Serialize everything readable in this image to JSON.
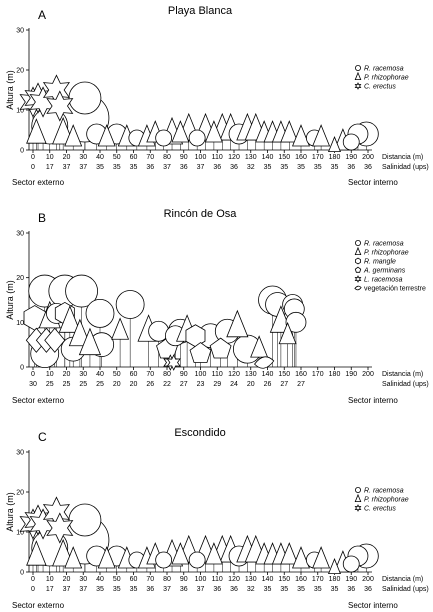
{
  "chart_data": [
    {
      "type": "scatter",
      "panel_letter": "A",
      "title": "Playa Blanca",
      "ylabel": "Altura (m)",
      "xlabel": "Distancia (m)",
      "salinity_label": "Salinidad (ups)",
      "ylim": [
        0,
        30
      ],
      "yticks": [
        0,
        10,
        20,
        30
      ],
      "xticks": [
        "0",
        "10",
        "20",
        "30",
        "40",
        "50",
        "60",
        "70",
        "80",
        "90",
        "100",
        "110",
        "120",
        "130",
        "140",
        "150",
        "160",
        "170",
        "180",
        "190",
        "200"
      ],
      "salinity": [
        "0",
        "17",
        "37",
        "37",
        "35",
        "35",
        "35",
        "36",
        "37",
        "36",
        "37",
        "36",
        "36",
        "32",
        "35",
        "35",
        "35",
        "35",
        "35",
        "36",
        "36"
      ],
      "sector_left": "Sector externo",
      "sector_right": "Sector interno",
      "legend": [
        {
          "symbol": "circle",
          "label": "R. racemosa"
        },
        {
          "symbol": "triangle",
          "label": "P. rhizophorae"
        },
        {
          "symbol": "star",
          "label": "C. erectus"
        }
      ],
      "points": [
        {
          "s": "star",
          "x": 0,
          "y": 12,
          "r": 3.2
        },
        {
          "s": "star",
          "x": 3,
          "y": 13,
          "r": 3.2
        },
        {
          "s": "star",
          "x": 6,
          "y": 12,
          "r": 3.2
        },
        {
          "s": "star",
          "x": 14,
          "y": 15,
          "r": 3.2
        },
        {
          "s": "star",
          "x": 16,
          "y": 11,
          "r": 3.2
        },
        {
          "s": "triangle",
          "x": 2,
          "y": 4,
          "r": 2.3
        },
        {
          "s": "circle",
          "x": 10,
          "y": 6,
          "r": 4.5
        },
        {
          "s": "triangle",
          "x": 18,
          "y": 4,
          "r": 2.5
        },
        {
          "s": "triangle",
          "x": 24,
          "y": 3,
          "r": 2.0
        },
        {
          "s": "circle",
          "x": 31,
          "y": 8,
          "r": 6.0
        },
        {
          "s": "circle",
          "x": 31,
          "y": 13,
          "r": 4.0
        },
        {
          "s": "circle",
          "x": 38,
          "y": 4,
          "r": 2.5
        },
        {
          "s": "triangle",
          "x": 44,
          "y": 3,
          "r": 2.0
        },
        {
          "s": "circle",
          "x": 50,
          "y": 4,
          "r": 2.5
        },
        {
          "s": "triangle",
          "x": 56,
          "y": 3,
          "r": 2.0
        },
        {
          "s": "circle",
          "x": 62,
          "y": 3,
          "r": 2.0
        },
        {
          "s": "triangle",
          "x": 68,
          "y": 3,
          "r": 2.0
        },
        {
          "s": "triangle",
          "x": 73,
          "y": 4,
          "r": 2.0
        },
        {
          "s": "circle",
          "x": 78,
          "y": 3,
          "r": 2.0
        },
        {
          "s": "triangle",
          "x": 83,
          "y": 4,
          "r": 2.5
        },
        {
          "s": "triangle",
          "x": 88,
          "y": 4,
          "r": 2.0
        },
        {
          "s": "triangle",
          "x": 93,
          "y": 5,
          "r": 2.5
        },
        {
          "s": "circle",
          "x": 98,
          "y": 3,
          "r": 2.0
        },
        {
          "s": "triangle",
          "x": 103,
          "y": 5,
          "r": 2.5
        },
        {
          "s": "triangle",
          "x": 108,
          "y": 4,
          "r": 2.0
        },
        {
          "s": "triangle",
          "x": 113,
          "y": 5,
          "r": 2.5
        },
        {
          "s": "triangle",
          "x": 118,
          "y": 5,
          "r": 2.5
        },
        {
          "s": "circle",
          "x": 123,
          "y": 4,
          "r": 2.5
        },
        {
          "s": "triangle",
          "x": 128,
          "y": 5,
          "r": 2.5
        },
        {
          "s": "triangle",
          "x": 133,
          "y": 5,
          "r": 2.5
        },
        {
          "s": "triangle",
          "x": 138,
          "y": 4,
          "r": 2.0
        },
        {
          "s": "triangle",
          "x": 143,
          "y": 4,
          "r": 2.0
        },
        {
          "s": "triangle",
          "x": 148,
          "y": 4,
          "r": 2.0
        },
        {
          "s": "triangle",
          "x": 153,
          "y": 4,
          "r": 2.0
        },
        {
          "s": "triangle",
          "x": 160,
          "y": 3,
          "r": 2.0
        },
        {
          "s": "circle",
          "x": 168,
          "y": 3,
          "r": 2.0
        },
        {
          "s": "triangle",
          "x": 172,
          "y": 3,
          "r": 2.0
        },
        {
          "s": "triangle",
          "x": 180,
          "y": 1,
          "r": 1.4
        },
        {
          "s": "triangle",
          "x": 185,
          "y": 2,
          "r": 2.0
        },
        {
          "s": "circle",
          "x": 190,
          "y": 2,
          "r": 2.0
        },
        {
          "s": "circle",
          "x": 194,
          "y": 4,
          "r": 2.5
        },
        {
          "s": "circle",
          "x": 199,
          "y": 4,
          "r": 3.0
        }
      ]
    },
    {
      "type": "scatter",
      "panel_letter": "B",
      "title": "Rincón de Osa",
      "ylabel": "Altura (m)",
      "xlabel": "Distancia (m)",
      "salinity_label": "Salinidad (ups)",
      "ylim": [
        0,
        30
      ],
      "yticks": [
        0,
        10,
        20,
        30
      ],
      "xticks": [
        "0",
        "10",
        "20",
        "30",
        "40",
        "50",
        "60",
        "70",
        "80",
        "90",
        "100",
        "110",
        "120",
        "130",
        "140",
        "150",
        "160",
        "170",
        "180",
        "190",
        "200"
      ],
      "salinity": [
        "30",
        "25",
        "25",
        "25",
        "25",
        "20",
        "20",
        "26",
        "22",
        "27",
        "23",
        "29",
        "24",
        "20",
        "26",
        "27",
        "27",
        "",
        "",
        "",
        ""
      ],
      "sector_left": "Sector externo",
      "sector_right": "Sector interno",
      "legend": [
        {
          "symbol": "circle",
          "label": "R. racemosa"
        },
        {
          "symbol": "triangle",
          "label": "P. rhizophorae"
        },
        {
          "symbol": "hexagon",
          "label": "R. mangle"
        },
        {
          "symbol": "pentagon",
          "label": "A. germinans"
        },
        {
          "symbol": "star",
          "label": "L. racemosa"
        },
        {
          "symbol": "leaf",
          "label": "vegetación terrestre"
        }
      ],
      "points": [
        {
          "s": "hexagon",
          "x": 1,
          "y": 11,
          "r": 2.8
        },
        {
          "s": "diamond",
          "x": 2,
          "y": 6,
          "r": 2.5
        },
        {
          "s": "circle",
          "x": 7,
          "y": 17,
          "r": 4.0
        },
        {
          "s": "circle",
          "x": 7,
          "y": 3,
          "r": 3.5
        },
        {
          "s": "diamond",
          "x": 8,
          "y": 6,
          "r": 2.5
        },
        {
          "s": "triangle",
          "x": 10,
          "y": 11,
          "r": 2.5
        },
        {
          "s": "circle",
          "x": 14,
          "y": 12,
          "r": 2.5
        },
        {
          "s": "diamond",
          "x": 13,
          "y": 6,
          "r": 2.5
        },
        {
          "s": "circle",
          "x": 19,
          "y": 17,
          "r": 4.0
        },
        {
          "s": "hexagon",
          "x": 19,
          "y": 12,
          "r": 2.5
        },
        {
          "s": "triangle",
          "x": 22,
          "y": 10,
          "r": 2.5
        },
        {
          "s": "circle",
          "x": 24,
          "y": 4,
          "r": 3.0
        },
        {
          "s": "circle",
          "x": 29,
          "y": 17,
          "r": 4.0
        },
        {
          "s": "triangle",
          "x": 28,
          "y": 7,
          "r": 2.5
        },
        {
          "s": "triangle",
          "x": 34,
          "y": 5,
          "r": 2.5
        },
        {
          "s": "circle",
          "x": 40,
          "y": 12,
          "r": 3.5
        },
        {
          "s": "circle",
          "x": 41,
          "y": 5,
          "r": 3.0
        },
        {
          "s": "triangle",
          "x": 52,
          "y": 8,
          "r": 2.0
        },
        {
          "s": "circle",
          "x": 58,
          "y": 14,
          "r": 3.5
        },
        {
          "s": "triangle",
          "x": 69,
          "y": 8,
          "r": 2.5
        },
        {
          "s": "circle",
          "x": 75,
          "y": 8,
          "r": 2.5
        },
        {
          "s": "pentagon",
          "x": 80,
          "y": 4,
          "r": 2.5
        },
        {
          "s": "star",
          "x": 82,
          "y": 1,
          "r": 1.6
        },
        {
          "s": "star",
          "x": 84,
          "y": 1,
          "r": 1.6
        },
        {
          "s": "circle",
          "x": 85,
          "y": 7,
          "r": 2.5
        },
        {
          "s": "circle",
          "x": 88,
          "y": 8,
          "r": 3.0
        },
        {
          "s": "triangle",
          "x": 92,
          "y": 8,
          "r": 2.5
        },
        {
          "s": "hexagon",
          "x": 97,
          "y": 7,
          "r": 2.5
        },
        {
          "s": "pentagon",
          "x": 100,
          "y": 3,
          "r": 2.5
        },
        {
          "s": "circle",
          "x": 106,
          "y": 7,
          "r": 3.0
        },
        {
          "s": "pentagon",
          "x": 112,
          "y": 4,
          "r": 2.5
        },
        {
          "s": "circle",
          "x": 116,
          "y": 8,
          "r": 3.0
        },
        {
          "s": "triangle",
          "x": 122,
          "y": 9,
          "r": 2.5
        },
        {
          "s": "circle",
          "x": 128,
          "y": 4,
          "r": 3.5
        },
        {
          "s": "triangle",
          "x": 135,
          "y": 4,
          "r": 2.0
        },
        {
          "s": "leaf",
          "x": 138,
          "y": 1,
          "r": 2.0
        },
        {
          "s": "circle",
          "x": 143,
          "y": 15,
          "r": 3.5
        },
        {
          "s": "circle",
          "x": 146,
          "y": 14,
          "r": 3.0
        },
        {
          "s": "triangle",
          "x": 148,
          "y": 10,
          "r": 2.5
        },
        {
          "s": "circle",
          "x": 155,
          "y": 14,
          "r": 2.5
        },
        {
          "s": "circle",
          "x": 156,
          "y": 13,
          "r": 2.5
        },
        {
          "s": "circle",
          "x": 157,
          "y": 10,
          "r": 2.5
        },
        {
          "s": "triangle",
          "x": 152,
          "y": 7,
          "r": 2.0
        }
      ]
    },
    {
      "type": "scatter",
      "panel_letter": "C",
      "title": "Escondido",
      "ylabel": "Altura (m)",
      "xlabel": "Distancia (m)",
      "salinity_label": "Salinidad (ups)",
      "ylim": [
        0,
        30
      ],
      "yticks": [
        0,
        10,
        20,
        30
      ],
      "xticks": [
        "0",
        "10",
        "20",
        "30",
        "40",
        "50",
        "60",
        "70",
        "80",
        "90",
        "100",
        "110",
        "120",
        "130",
        "140",
        "150",
        "160",
        "170",
        "180",
        "190",
        "200"
      ],
      "salinity": [
        "0",
        "17",
        "37",
        "37",
        "35",
        "35",
        "35",
        "36",
        "37",
        "36",
        "37",
        "36",
        "36",
        "32",
        "35",
        "35",
        "35",
        "35",
        "35",
        "36",
        "36"
      ],
      "sector_left": "Sector externo",
      "sector_right": "Sector interno",
      "legend": [
        {
          "symbol": "circle",
          "label": "R. racemosa"
        },
        {
          "symbol": "triangle",
          "label": "P. rhizophorae"
        },
        {
          "symbol": "star",
          "label": "C. erectus"
        }
      ],
      "points": [
        {
          "s": "star",
          "x": 0,
          "y": 12,
          "r": 3.2
        },
        {
          "s": "star",
          "x": 3,
          "y": 13,
          "r": 3.2
        },
        {
          "s": "star",
          "x": 6,
          "y": 12,
          "r": 3.2
        },
        {
          "s": "star",
          "x": 14,
          "y": 15,
          "r": 3.2
        },
        {
          "s": "star",
          "x": 16,
          "y": 11,
          "r": 3.2
        },
        {
          "s": "triangle",
          "x": 2,
          "y": 4,
          "r": 2.3
        },
        {
          "s": "circle",
          "x": 10,
          "y": 6,
          "r": 4.5
        },
        {
          "s": "triangle",
          "x": 18,
          "y": 4,
          "r": 2.5
        },
        {
          "s": "triangle",
          "x": 24,
          "y": 3,
          "r": 2.0
        },
        {
          "s": "circle",
          "x": 31,
          "y": 8,
          "r": 6.0
        },
        {
          "s": "circle",
          "x": 31,
          "y": 13,
          "r": 4.0
        },
        {
          "s": "circle",
          "x": 38,
          "y": 4,
          "r": 2.5
        },
        {
          "s": "triangle",
          "x": 44,
          "y": 3,
          "r": 2.0
        },
        {
          "s": "circle",
          "x": 50,
          "y": 4,
          "r": 2.5
        },
        {
          "s": "triangle",
          "x": 56,
          "y": 3,
          "r": 2.0
        },
        {
          "s": "circle",
          "x": 62,
          "y": 3,
          "r": 2.0
        },
        {
          "s": "triangle",
          "x": 68,
          "y": 3,
          "r": 2.0
        },
        {
          "s": "triangle",
          "x": 73,
          "y": 4,
          "r": 2.0
        },
        {
          "s": "circle",
          "x": 78,
          "y": 3,
          "r": 2.0
        },
        {
          "s": "triangle",
          "x": 83,
          "y": 4,
          "r": 2.5
        },
        {
          "s": "triangle",
          "x": 88,
          "y": 4,
          "r": 2.0
        },
        {
          "s": "triangle",
          "x": 93,
          "y": 5,
          "r": 2.5
        },
        {
          "s": "circle",
          "x": 98,
          "y": 3,
          "r": 2.0
        },
        {
          "s": "triangle",
          "x": 103,
          "y": 5,
          "r": 2.5
        },
        {
          "s": "triangle",
          "x": 108,
          "y": 4,
          "r": 2.0
        },
        {
          "s": "triangle",
          "x": 113,
          "y": 5,
          "r": 2.5
        },
        {
          "s": "triangle",
          "x": 118,
          "y": 5,
          "r": 2.5
        },
        {
          "s": "circle",
          "x": 123,
          "y": 4,
          "r": 2.5
        },
        {
          "s": "triangle",
          "x": 128,
          "y": 5,
          "r": 2.5
        },
        {
          "s": "triangle",
          "x": 133,
          "y": 5,
          "r": 2.5
        },
        {
          "s": "triangle",
          "x": 138,
          "y": 4,
          "r": 2.0
        },
        {
          "s": "triangle",
          "x": 143,
          "y": 4,
          "r": 2.0
        },
        {
          "s": "triangle",
          "x": 148,
          "y": 4,
          "r": 2.0
        },
        {
          "s": "triangle",
          "x": 153,
          "y": 4,
          "r": 2.0
        },
        {
          "s": "triangle",
          "x": 160,
          "y": 3,
          "r": 2.0
        },
        {
          "s": "circle",
          "x": 168,
          "y": 3,
          "r": 2.0
        },
        {
          "s": "triangle",
          "x": 172,
          "y": 3,
          "r": 2.0
        },
        {
          "s": "triangle",
          "x": 180,
          "y": 1,
          "r": 1.4
        },
        {
          "s": "triangle",
          "x": 185,
          "y": 2,
          "r": 2.0
        },
        {
          "s": "circle",
          "x": 190,
          "y": 2,
          "r": 2.0
        },
        {
          "s": "circle",
          "x": 194,
          "y": 4,
          "r": 2.5
        },
        {
          "s": "circle",
          "x": 199,
          "y": 4,
          "r": 3.0
        }
      ]
    }
  ]
}
